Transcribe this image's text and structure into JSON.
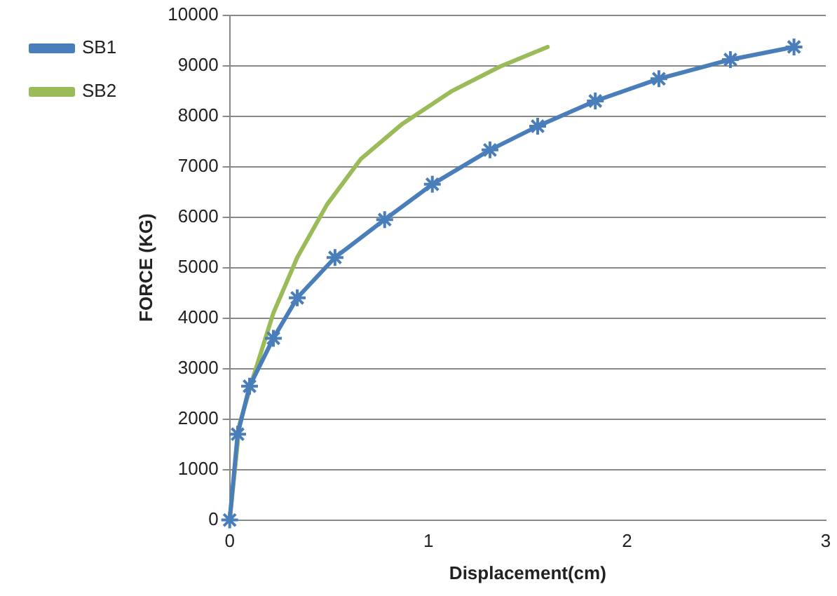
{
  "chart_data": {
    "type": "line",
    "xlabel": "Displacement(cm)",
    "ylabel": "FORCE (KG)",
    "xlim": [
      0,
      3
    ],
    "xticks": [
      0,
      1,
      2,
      3
    ],
    "ylim": [
      0,
      10000
    ],
    "yticks": [
      0,
      1000,
      2000,
      3000,
      4000,
      5000,
      6000,
      7000,
      8000,
      9000,
      10000
    ],
    "grid": "y",
    "legend": "top left",
    "line_style": "solid",
    "series": [
      {
        "name": "SB1",
        "color": "#4a7ebb",
        "marker": "cross",
        "x": [
          0,
          0.04,
          0.1,
          0.22,
          0.34,
          0.53,
          0.78,
          1.02,
          1.31,
          1.55,
          1.84,
          2.16,
          2.52,
          2.84
        ],
        "values": [
          0,
          1700,
          2650,
          3600,
          4400,
          5200,
          5950,
          6650,
          7330,
          7800,
          8300,
          8740,
          9120,
          9370
        ]
      },
      {
        "name": "SB2",
        "color": "#9bbb59",
        "marker": "none",
        "x": [
          0,
          0.05,
          0.12,
          0.22,
          0.34,
          0.49,
          0.66,
          0.87,
          1.12,
          1.36,
          1.6
        ],
        "values": [
          0,
          1900,
          2850,
          4100,
          5200,
          6250,
          7150,
          7850,
          8500,
          8980,
          9370
        ]
      }
    ]
  }
}
